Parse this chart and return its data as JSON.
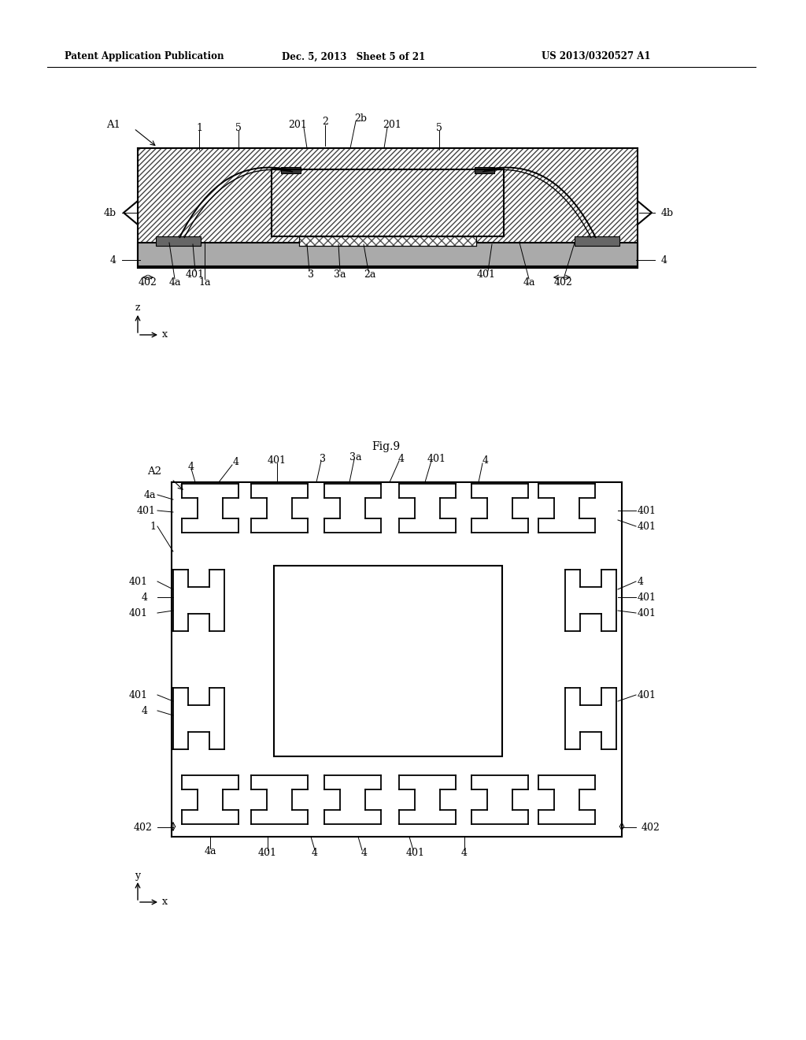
{
  "bg_color": "#ffffff",
  "header_left": "Patent Application Publication",
  "header_mid": "Dec. 5, 2013   Sheet 5 of 21",
  "header_right": "US 2013/0320527 A1",
  "fig9_label": "Fig.9",
  "line_color": "#000000",
  "fig_width": 10.24,
  "fig_height": 13.2
}
